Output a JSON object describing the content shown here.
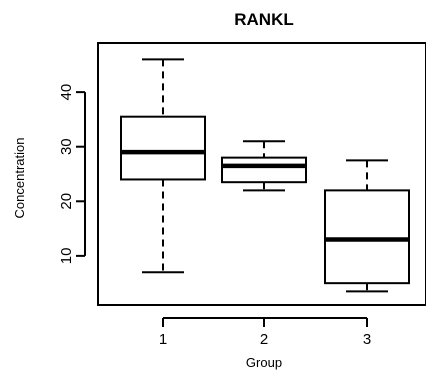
{
  "chart_data": {
    "type": "boxplot",
    "title": "RANKL",
    "xlabel": "Group",
    "ylabel": "Concentration",
    "categories": [
      "1",
      "2",
      "3"
    ],
    "boxes": [
      {
        "category": "1",
        "min": 7,
        "q1": 24,
        "median": 29,
        "q3": 35.5,
        "max": 46
      },
      {
        "category": "2",
        "min": 22,
        "q1": 23.5,
        "median": 26.5,
        "q3": 28,
        "max": 31
      },
      {
        "category": "3",
        "min": 3.5,
        "q1": 5,
        "median": 13,
        "q3": 22,
        "max": 27.5
      }
    ],
    "ylim": [
      1,
      49
    ],
    "y_ticks": [
      10,
      20,
      30,
      40
    ],
    "grid": false,
    "colors": {
      "box_fill": "#ffffff",
      "line": "#000000"
    }
  }
}
